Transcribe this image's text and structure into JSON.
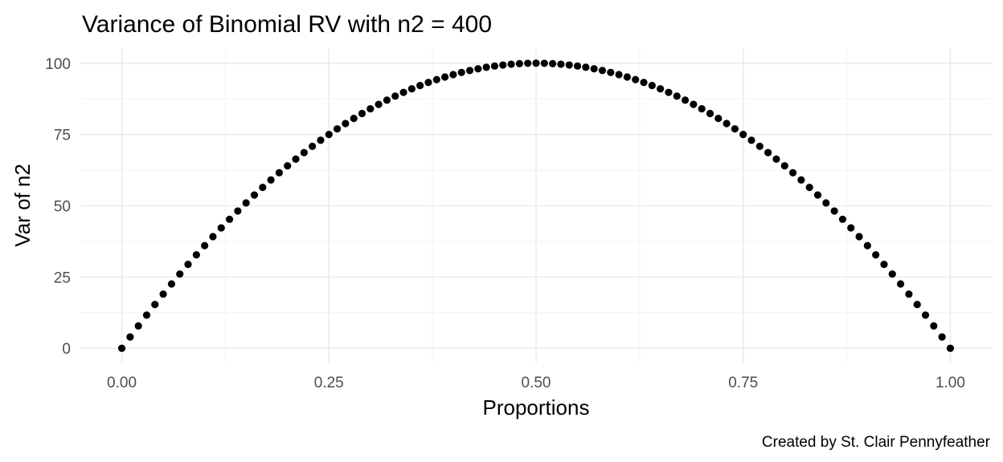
{
  "chart_data": {
    "type": "scatter",
    "title": "Variance of Binomial RV with n2 = 400",
    "xlabel": "Proportions",
    "ylabel": "Var of n2",
    "caption": "Created by St. Clair Pennyfeather",
    "n": 400,
    "x": [
      0.0,
      0.01,
      0.02,
      0.03,
      0.04,
      0.05,
      0.06,
      0.07,
      0.08,
      0.09,
      0.1,
      0.11,
      0.12,
      0.13,
      0.14,
      0.15,
      0.16,
      0.17,
      0.18,
      0.19,
      0.2,
      0.21,
      0.22,
      0.23,
      0.24,
      0.25,
      0.26,
      0.27,
      0.28,
      0.29,
      0.3,
      0.31,
      0.32,
      0.33,
      0.34,
      0.35,
      0.36,
      0.37,
      0.38,
      0.39,
      0.4,
      0.41,
      0.42,
      0.43,
      0.44,
      0.45,
      0.46,
      0.47,
      0.48,
      0.49,
      0.5,
      0.51,
      0.52,
      0.53,
      0.54,
      0.55,
      0.56,
      0.57,
      0.58,
      0.59,
      0.6,
      0.61,
      0.62,
      0.63,
      0.64,
      0.65,
      0.66,
      0.67,
      0.68,
      0.69,
      0.7,
      0.71,
      0.72,
      0.73,
      0.74,
      0.75,
      0.76,
      0.77,
      0.78,
      0.79,
      0.8,
      0.81,
      0.82,
      0.83,
      0.84,
      0.85,
      0.86,
      0.87,
      0.88,
      0.89,
      0.9,
      0.91,
      0.92,
      0.93,
      0.94,
      0.95,
      0.96,
      0.97,
      0.98,
      0.99,
      1.0
    ],
    "y": [
      0,
      3.96,
      7.84,
      11.64,
      15.36,
      19,
      22.56,
      26.04,
      29.44,
      32.76,
      36,
      39.16,
      42.24,
      45.24,
      48.16,
      51,
      53.76,
      56.44,
      59.04,
      61.56,
      64,
      66.36,
      68.64,
      70.84,
      72.96,
      75,
      76.96,
      78.84,
      80.64,
      82.36,
      84,
      85.56,
      87.04,
      88.44,
      89.76,
      91,
      92.16,
      93.24,
      94.24,
      95.16,
      96,
      96.76,
      97.44,
      98.04,
      98.56,
      99,
      99.36,
      99.64,
      99.84,
      99.96,
      100,
      99.96,
      99.84,
      99.64,
      99.36,
      99,
      98.56,
      98.04,
      97.44,
      96.76,
      96,
      95.16,
      94.24,
      93.24,
      92.16,
      91,
      89.76,
      88.44,
      87.04,
      85.56,
      84,
      82.36,
      80.64,
      78.84,
      76.96,
      75,
      72.96,
      70.84,
      68.64,
      66.36,
      64,
      61.56,
      59.04,
      56.44,
      53.76,
      51,
      48.16,
      45.24,
      42.24,
      39.16,
      36,
      32.76,
      29.44,
      26.04,
      22.56,
      19,
      15.36,
      11.64,
      7.84,
      3.96,
      0
    ],
    "xlim": [
      -0.05,
      1.05
    ],
    "ylim": [
      -5,
      105
    ],
    "x_ticks": [
      0,
      0.25,
      0.5,
      0.75,
      1
    ],
    "x_tick_labels": [
      "0.00",
      "0.25",
      "0.50",
      "0.75",
      "1.00"
    ],
    "y_ticks": [
      0,
      25,
      50,
      75,
      100
    ],
    "y_tick_labels": [
      "0",
      "25",
      "50",
      "75",
      "100"
    ],
    "grid": true,
    "point_color": "#000000",
    "grid_color": "#ebebeb"
  }
}
